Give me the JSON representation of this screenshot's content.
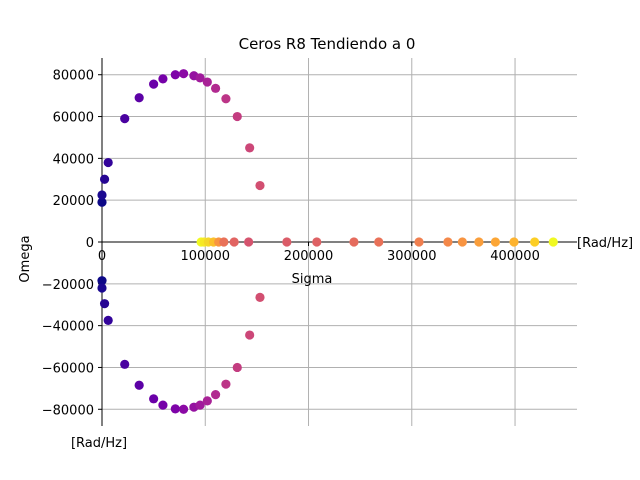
{
  "chart_data": {
    "type": "scatter",
    "title": "Ceros R8 Tendiendo a 0",
    "xlabel": "Sigma",
    "ylabel": "Omega",
    "x_unit_label": "[Rad/Hz]",
    "y_unit_label": "[Rad/Hz]",
    "xlim": [
      0,
      460000
    ],
    "ylim": [
      -88000,
      88000
    ],
    "grid": true,
    "colormap": "plasma",
    "xticks": [
      {
        "value": 0,
        "label": "0"
      },
      {
        "value": 100000,
        "label": "100000"
      },
      {
        "value": 200000,
        "label": "200000"
      },
      {
        "value": 300000,
        "label": "300000"
      },
      {
        "value": 400000,
        "label": "400000"
      }
    ],
    "yticks": [
      {
        "value": 80000,
        "label": "80000"
      },
      {
        "value": 60000,
        "label": "60000"
      },
      {
        "value": 40000,
        "label": "40000"
      },
      {
        "value": 20000,
        "label": "20000"
      },
      {
        "value": 0,
        "label": "0"
      },
      {
        "value": -20000,
        "label": "−20000"
      },
      {
        "value": -40000,
        "label": "−40000"
      },
      {
        "value": -60000,
        "label": "−60000"
      },
      {
        "value": -80000,
        "label": "−80000"
      }
    ],
    "series": [
      {
        "points": [
          {
            "x": 0,
            "y": 19000,
            "color": "#0d0887"
          },
          {
            "x": 0,
            "y": 22500,
            "color": "#1a0890"
          },
          {
            "x": 2500,
            "y": 30000,
            "color": "#260592"
          },
          {
            "x": 6000,
            "y": 38000,
            "color": "#33049a"
          },
          {
            "x": 22000,
            "y": 59000,
            "color": "#4a02a0"
          },
          {
            "x": 36000,
            "y": 69000,
            "color": "#5c01a6"
          },
          {
            "x": 50000,
            "y": 75500,
            "color": "#6a00a8"
          },
          {
            "x": 59000,
            "y": 78000,
            "color": "#7501a8"
          },
          {
            "x": 71000,
            "y": 80000,
            "color": "#7e03a8"
          },
          {
            "x": 79000,
            "y": 80500,
            "color": "#8b0aa5"
          },
          {
            "x": 89000,
            "y": 79500,
            "color": "#9511a1"
          },
          {
            "x": 95000,
            "y": 78500,
            "color": "#a01a9c"
          },
          {
            "x": 102000,
            "y": 76500,
            "color": "#a82296"
          },
          {
            "x": 110000,
            "y": 73500,
            "color": "#b12a90"
          },
          {
            "x": 120000,
            "y": 68500,
            "color": "#bc3587"
          },
          {
            "x": 131000,
            "y": 60000,
            "color": "#c33d80"
          },
          {
            "x": 143000,
            "y": 45000,
            "color": "#cc4778"
          },
          {
            "x": 153000,
            "y": 27000,
            "color": "#d24f71"
          },
          {
            "x": 0,
            "y": -18500,
            "color": "#0d0887"
          },
          {
            "x": 0,
            "y": -22000,
            "color": "#1a0890"
          },
          {
            "x": 2500,
            "y": -29500,
            "color": "#260592"
          },
          {
            "x": 6000,
            "y": -37500,
            "color": "#33049a"
          },
          {
            "x": 22000,
            "y": -58500,
            "color": "#4a02a0"
          },
          {
            "x": 36000,
            "y": -68500,
            "color": "#5c01a6"
          },
          {
            "x": 50000,
            "y": -75000,
            "color": "#6a00a8"
          },
          {
            "x": 59000,
            "y": -78000,
            "color": "#7501a8"
          },
          {
            "x": 71000,
            "y": -79800,
            "color": "#7e03a8"
          },
          {
            "x": 79000,
            "y": -80000,
            "color": "#8b0aa5"
          },
          {
            "x": 89000,
            "y": -79000,
            "color": "#9511a1"
          },
          {
            "x": 95000,
            "y": -78000,
            "color": "#a01a9c"
          },
          {
            "x": 102000,
            "y": -76000,
            "color": "#a82296"
          },
          {
            "x": 110000,
            "y": -73000,
            "color": "#b12a90"
          },
          {
            "x": 120000,
            "y": -68000,
            "color": "#bc3587"
          },
          {
            "x": 131000,
            "y": -60000,
            "color": "#c33d80"
          },
          {
            "x": 143000,
            "y": -44500,
            "color": "#cc4778"
          },
          {
            "x": 153000,
            "y": -26500,
            "color": "#d24f71"
          },
          {
            "x": 96000,
            "y": 0,
            "color": "#f0f921"
          },
          {
            "x": 99000,
            "y": 0,
            "color": "#f6e826"
          },
          {
            "x": 103000,
            "y": 0,
            "color": "#f4d72a"
          },
          {
            "x": 108000,
            "y": 0,
            "color": "#fbbf2b"
          },
          {
            "x": 113000,
            "y": 0,
            "color": "#f89540"
          },
          {
            "x": 118000,
            "y": 0,
            "color": "#e97158"
          },
          {
            "x": 128000,
            "y": 0,
            "color": "#e16462"
          },
          {
            "x": 142000,
            "y": 0,
            "color": "#d5546e"
          },
          {
            "x": 179000,
            "y": 0,
            "color": "#db5c68"
          },
          {
            "x": 208000,
            "y": 0,
            "color": "#de6164"
          },
          {
            "x": 244000,
            "y": 0,
            "color": "#e56b5d"
          },
          {
            "x": 268000,
            "y": 0,
            "color": "#e97158"
          },
          {
            "x": 307000,
            "y": 0,
            "color": "#f07f4f"
          },
          {
            "x": 335000,
            "y": 0,
            "color": "#f48849"
          },
          {
            "x": 349000,
            "y": 0,
            "color": "#f89441"
          },
          {
            "x": 365000,
            "y": 0,
            "color": "#fa9e3b"
          },
          {
            "x": 381000,
            "y": 0,
            "color": "#fca636"
          },
          {
            "x": 399000,
            "y": 0,
            "color": "#fdb32f"
          },
          {
            "x": 419000,
            "y": 0,
            "color": "#fcce25"
          },
          {
            "x": 437000,
            "y": 0,
            "color": "#f0f921"
          }
        ]
      }
    ]
  }
}
